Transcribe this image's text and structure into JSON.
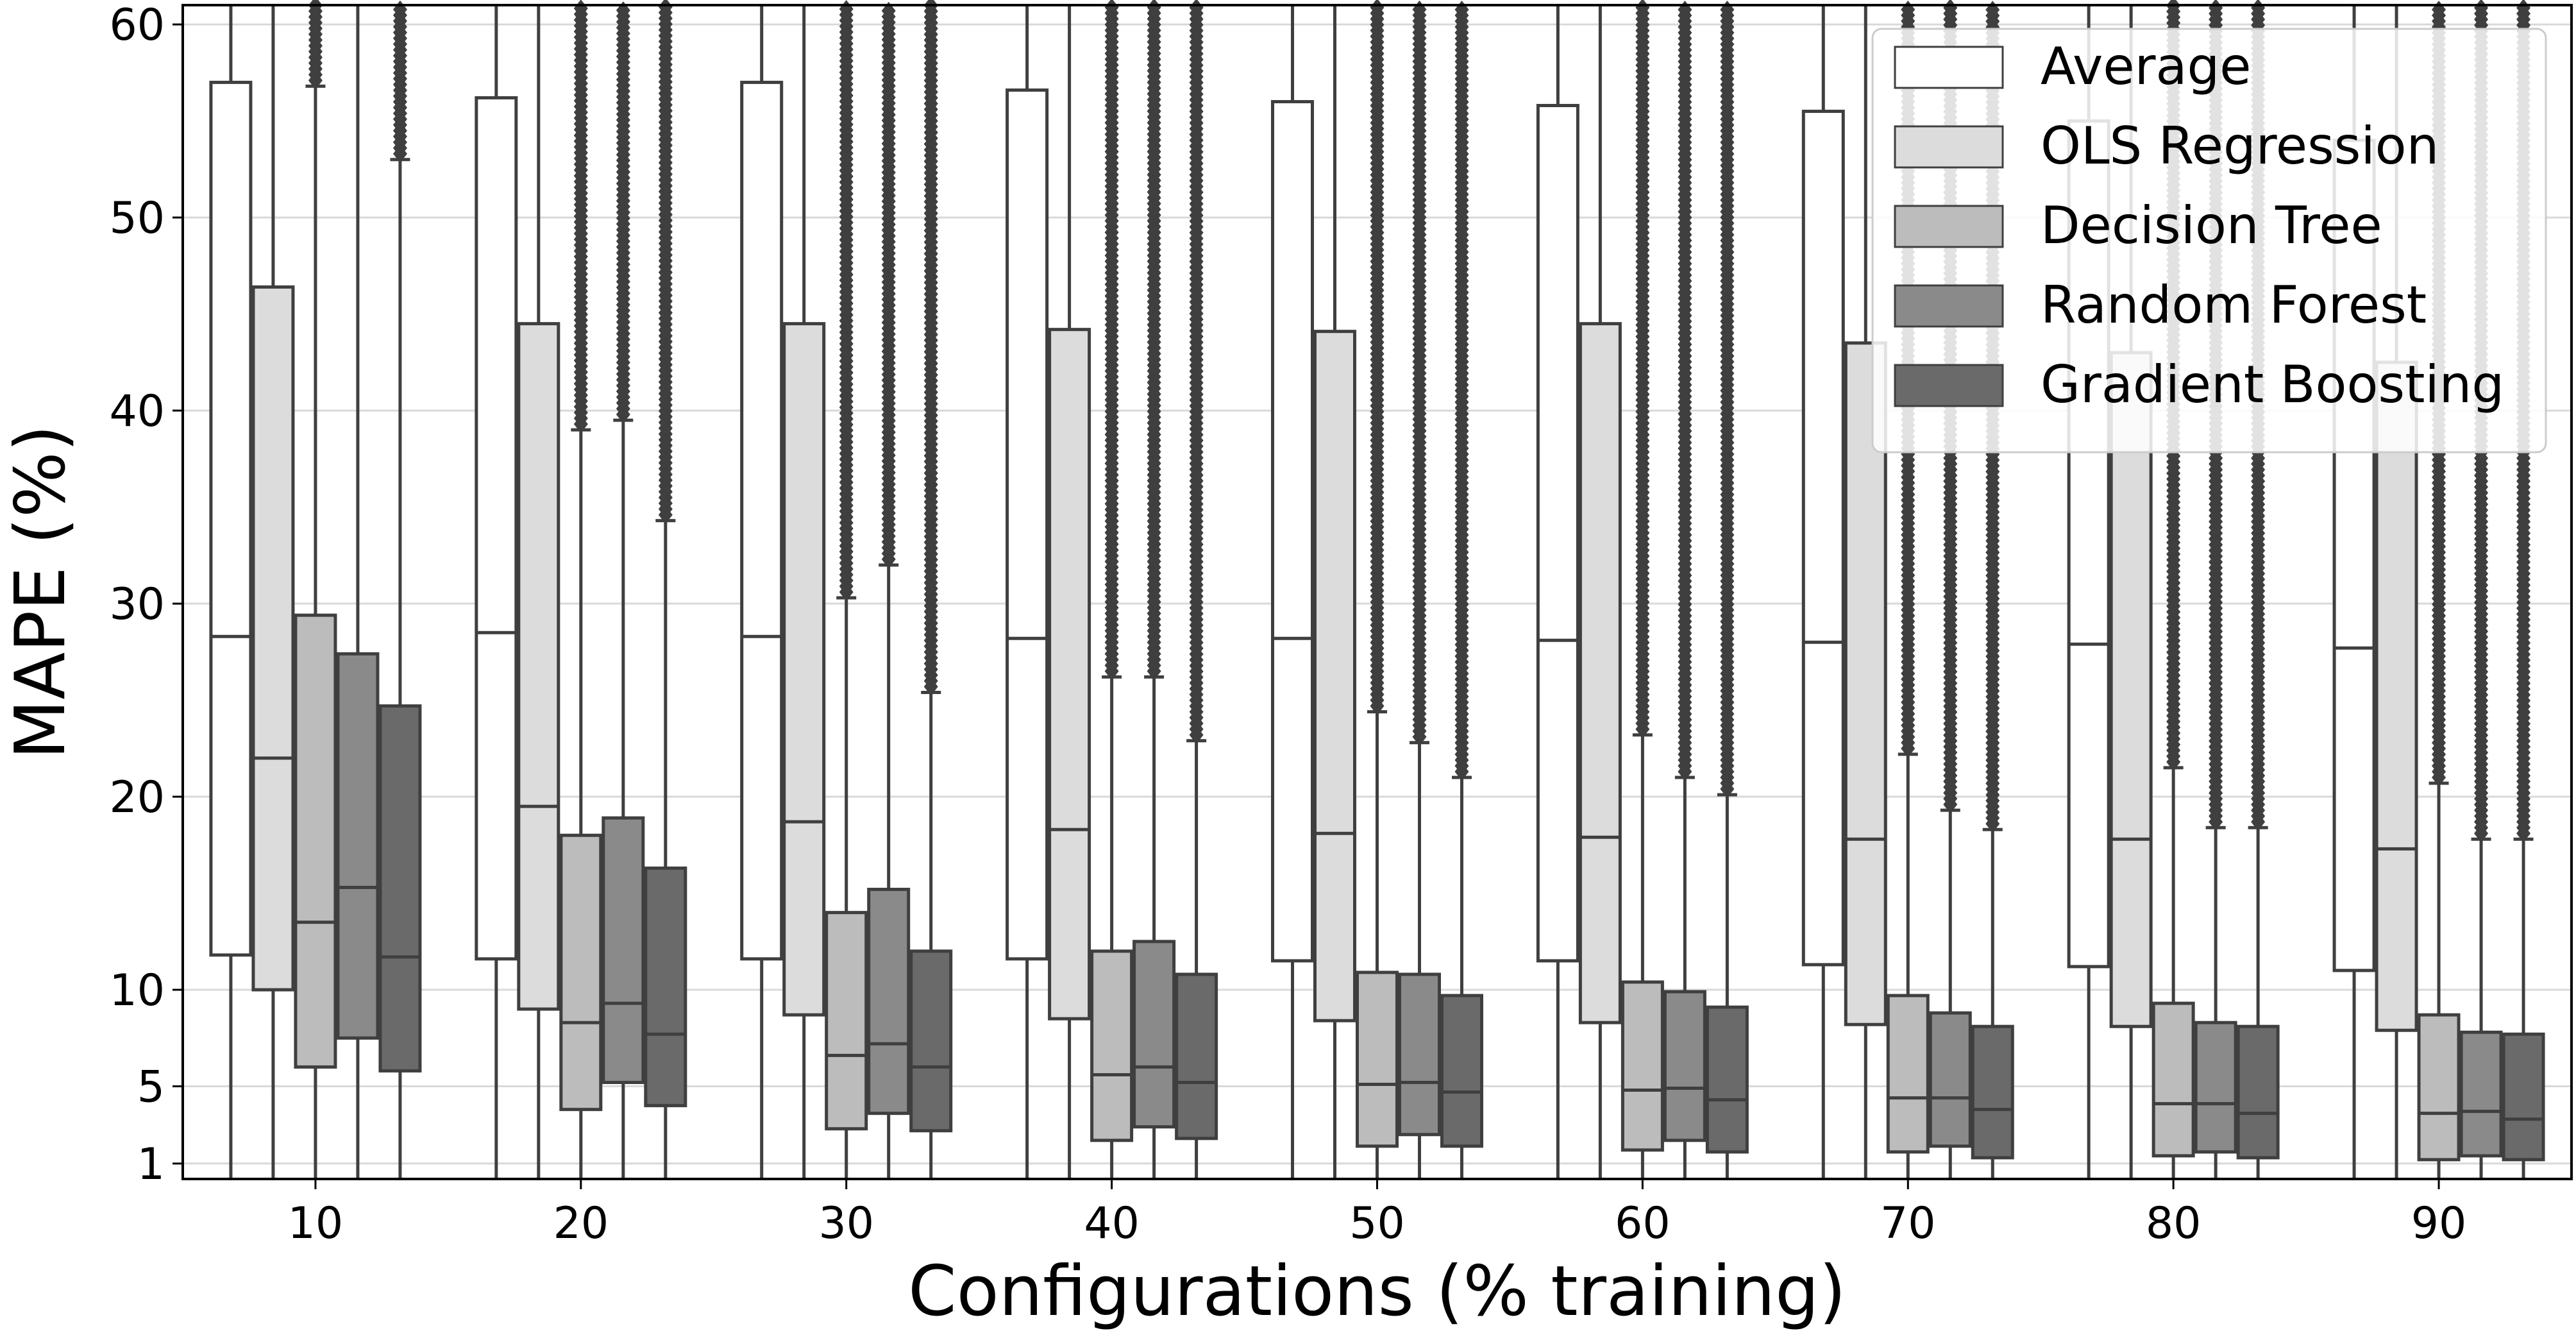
{
  "chart_data": {
    "type": "box",
    "xlabel": "Configurations (% training)",
    "ylabel": "MAPE (%)",
    "ylim": [
      0.2,
      61
    ],
    "yticks": [
      1,
      5,
      10,
      20,
      30,
      40,
      50,
      60
    ],
    "grid": "horizontal",
    "legend_position": "top-right",
    "categories": [
      "10",
      "20",
      "30",
      "40",
      "50",
      "60",
      "70",
      "80",
      "90"
    ],
    "series": [
      {
        "name": "Average",
        "color": "#ffffff",
        "boxes": [
          {
            "whislo": 0.2,
            "q1": 11.8,
            "med": 28.3,
            "q3": 57.0,
            "whishi": 61
          },
          {
            "whislo": 0.2,
            "q1": 11.6,
            "med": 28.5,
            "q3": 56.2,
            "whishi": 61
          },
          {
            "whislo": 0.2,
            "q1": 11.6,
            "med": 28.3,
            "q3": 57.0,
            "whishi": 61
          },
          {
            "whislo": 0.2,
            "q1": 11.6,
            "med": 28.2,
            "q3": 56.6,
            "whishi": 61
          },
          {
            "whislo": 0.2,
            "q1": 11.5,
            "med": 28.2,
            "q3": 56.0,
            "whishi": 61
          },
          {
            "whislo": 0.2,
            "q1": 11.5,
            "med": 28.1,
            "q3": 55.8,
            "whishi": 61
          },
          {
            "whislo": 0.2,
            "q1": 11.3,
            "med": 28.0,
            "q3": 55.5,
            "whishi": 61
          },
          {
            "whislo": 0.2,
            "q1": 11.2,
            "med": 27.9,
            "q3": 55.0,
            "whishi": 61
          },
          {
            "whislo": 0.2,
            "q1": 11.0,
            "med": 27.7,
            "q3": 54.0,
            "whishi": 61
          }
        ]
      },
      {
        "name": "OLS Regression",
        "color": "#dcdcdc",
        "boxes": [
          {
            "whislo": 0.2,
            "q1": 10.0,
            "med": 22.0,
            "q3": 46.4,
            "whishi": 61
          },
          {
            "whislo": 0.2,
            "q1": 9.0,
            "med": 19.5,
            "q3": 44.5,
            "whishi": 61
          },
          {
            "whislo": 0.2,
            "q1": 8.7,
            "med": 18.7,
            "q3": 44.5,
            "whishi": 61
          },
          {
            "whislo": 0.2,
            "q1": 8.5,
            "med": 18.3,
            "q3": 44.2,
            "whishi": 61
          },
          {
            "whislo": 0.2,
            "q1": 8.4,
            "med": 18.1,
            "q3": 44.1,
            "whishi": 61
          },
          {
            "whislo": 0.2,
            "q1": 8.3,
            "med": 17.9,
            "q3": 44.5,
            "whishi": 61
          },
          {
            "whislo": 0.2,
            "q1": 8.2,
            "med": 17.8,
            "q3": 43.5,
            "whishi": 61
          },
          {
            "whislo": 0.2,
            "q1": 8.1,
            "med": 17.8,
            "q3": 43.0,
            "whishi": 61
          },
          {
            "whislo": 0.2,
            "q1": 7.9,
            "med": 17.3,
            "q3": 42.5,
            "whishi": 61
          }
        ]
      },
      {
        "name": "Decision Tree",
        "color": "#bcbcbc",
        "boxes": [
          {
            "whislo": 0.2,
            "q1": 6.0,
            "med": 13.5,
            "q3": 29.4,
            "whishi": 56.8,
            "fliers_from": 56.8
          },
          {
            "whislo": 0.2,
            "q1": 3.8,
            "med": 8.3,
            "q3": 18.0,
            "whishi": 39.0,
            "fliers_from": 39.0
          },
          {
            "whislo": 0.2,
            "q1": 2.8,
            "med": 6.6,
            "q3": 14.0,
            "whishi": 30.3,
            "fliers_from": 30.3
          },
          {
            "whislo": 0.2,
            "q1": 2.2,
            "med": 5.6,
            "q3": 12.0,
            "whishi": 26.2,
            "fliers_from": 26.2
          },
          {
            "whislo": 0.2,
            "q1": 1.9,
            "med": 5.1,
            "q3": 10.9,
            "whishi": 24.4,
            "fliers_from": 24.4
          },
          {
            "whislo": 0.2,
            "q1": 1.7,
            "med": 4.8,
            "q3": 10.4,
            "whishi": 23.2,
            "fliers_from": 23.2
          },
          {
            "whislo": 0.2,
            "q1": 1.6,
            "med": 4.4,
            "q3": 9.7,
            "whishi": 22.2,
            "fliers_from": 22.2
          },
          {
            "whislo": 0.2,
            "q1": 1.4,
            "med": 4.1,
            "q3": 9.3,
            "whishi": 21.5,
            "fliers_from": 21.5
          },
          {
            "whislo": 0.2,
            "q1": 1.2,
            "med": 3.6,
            "q3": 8.7,
            "whishi": 20.7,
            "fliers_from": 20.7
          }
        ]
      },
      {
        "name": "Random Forest",
        "color": "#8a8a8a",
        "boxes": [
          {
            "whislo": 0.2,
            "q1": 7.5,
            "med": 15.3,
            "q3": 27.4,
            "whishi": 61
          },
          {
            "whislo": 0.2,
            "q1": 5.2,
            "med": 9.3,
            "q3": 18.9,
            "whishi": 39.5,
            "fliers_from": 39.5
          },
          {
            "whislo": 0.2,
            "q1": 3.6,
            "med": 7.2,
            "q3": 15.2,
            "whishi": 32.0,
            "fliers_from": 32.0
          },
          {
            "whislo": 0.2,
            "q1": 2.9,
            "med": 6.0,
            "q3": 12.5,
            "whishi": 26.2,
            "fliers_from": 26.2
          },
          {
            "whislo": 0.2,
            "q1": 2.5,
            "med": 5.2,
            "q3": 10.8,
            "whishi": 22.8,
            "fliers_from": 22.8
          },
          {
            "whislo": 0.2,
            "q1": 2.2,
            "med": 4.9,
            "q3": 9.9,
            "whishi": 21.0,
            "fliers_from": 21.0
          },
          {
            "whislo": 0.2,
            "q1": 1.9,
            "med": 4.4,
            "q3": 8.8,
            "whishi": 19.3,
            "fliers_from": 19.3
          },
          {
            "whislo": 0.2,
            "q1": 1.6,
            "med": 4.1,
            "q3": 8.3,
            "whishi": 18.4,
            "fliers_from": 18.4
          },
          {
            "whislo": 0.2,
            "q1": 1.4,
            "med": 3.7,
            "q3": 7.8,
            "whishi": 17.8,
            "fliers_from": 17.8
          }
        ]
      },
      {
        "name": "Gradient Boosting",
        "color": "#6a6a6a",
        "boxes": [
          {
            "whislo": 0.2,
            "q1": 5.8,
            "med": 11.7,
            "q3": 24.7,
            "whishi": 53.0,
            "fliers_from": 53.0
          },
          {
            "whislo": 0.2,
            "q1": 4.0,
            "med": 7.7,
            "q3": 16.3,
            "whishi": 34.3,
            "fliers_from": 34.3
          },
          {
            "whislo": 0.2,
            "q1": 2.7,
            "med": 6.0,
            "q3": 12.0,
            "whishi": 25.4,
            "fliers_from": 25.4
          },
          {
            "whislo": 0.2,
            "q1": 2.3,
            "med": 5.2,
            "q3": 10.8,
            "whishi": 22.9,
            "fliers_from": 22.9
          },
          {
            "whislo": 0.2,
            "q1": 1.9,
            "med": 4.7,
            "q3": 9.7,
            "whishi": 21.0,
            "fliers_from": 21.0
          },
          {
            "whislo": 0.2,
            "q1": 1.6,
            "med": 4.3,
            "q3": 9.1,
            "whishi": 20.1,
            "fliers_from": 20.1
          },
          {
            "whislo": 0.2,
            "q1": 1.3,
            "med": 3.8,
            "q3": 8.1,
            "whishi": 18.3,
            "fliers_from": 18.3
          },
          {
            "whislo": 0.2,
            "q1": 1.3,
            "med": 3.6,
            "q3": 8.1,
            "whishi": 18.4,
            "fliers_from": 18.4
          },
          {
            "whislo": 0.2,
            "q1": 1.2,
            "med": 3.3,
            "q3": 7.7,
            "whishi": 17.8,
            "fliers_from": 17.8
          }
        ]
      }
    ]
  },
  "colors": {
    "edge": "#3f3f3f",
    "grid": "#d9d9d9",
    "flier": "#3f3f3f"
  }
}
